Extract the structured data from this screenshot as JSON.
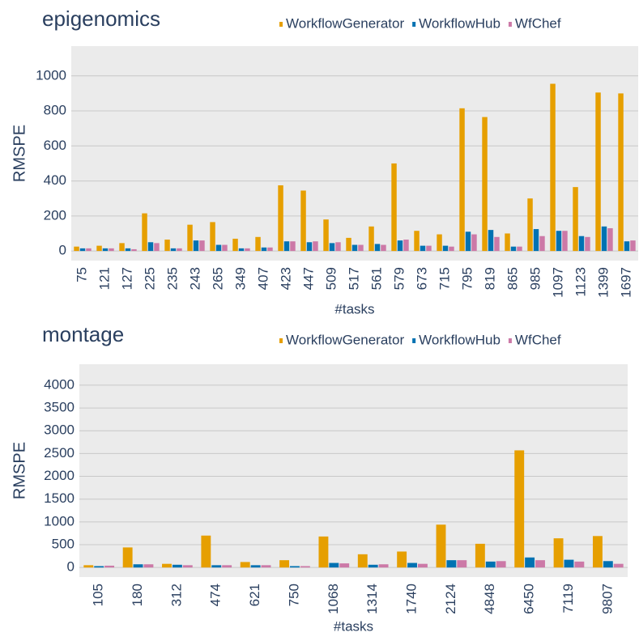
{
  "chart_data": [
    {
      "type": "bar",
      "title": "epigenomics",
      "xlabel": "#tasks",
      "ylabel": "RMSPE",
      "categories": [
        "75",
        "121",
        "127",
        "225",
        "235",
        "243",
        "265",
        "349",
        "407",
        "423",
        "447",
        "509",
        "517",
        "561",
        "579",
        "673",
        "715",
        "795",
        "819",
        "865",
        "985",
        "1097",
        "1123",
        "1399",
        "1697"
      ],
      "series": [
        {
          "name": "WorkflowGenerator",
          "color": "#e69f00",
          "values": [
            25,
            30,
            45,
            215,
            65,
            150,
            165,
            70,
            80,
            375,
            345,
            180,
            75,
            140,
            500,
            115,
            95,
            815,
            765,
            100,
            300,
            955,
            365,
            905,
            900
          ]
        },
        {
          "name": "WorkflowHub",
          "color": "#0072b2",
          "values": [
            15,
            15,
            15,
            50,
            15,
            60,
            35,
            15,
            20,
            55,
            50,
            45,
            35,
            40,
            60,
            30,
            30,
            110,
            120,
            25,
            125,
            115,
            85,
            140,
            55
          ]
        },
        {
          "name": "WfChef",
          "color": "#cc79a7",
          "values": [
            15,
            15,
            10,
            45,
            15,
            60,
            35,
            15,
            20,
            55,
            55,
            50,
            35,
            35,
            65,
            30,
            25,
            95,
            80,
            25,
            85,
            115,
            80,
            130,
            60
          ]
        }
      ],
      "ylim": [
        -55,
        1170
      ],
      "yticks": [
        0,
        200,
        400,
        600,
        800,
        1000
      ],
      "grid": true
    },
    {
      "type": "bar",
      "title": "montage",
      "xlabel": "#tasks",
      "ylabel": "RMSPE",
      "categories": [
        "105",
        "180",
        "312",
        "474",
        "621",
        "750",
        "1068",
        "1314",
        "1740",
        "2124",
        "4848",
        "6450",
        "7119",
        "9807"
      ],
      "series": [
        {
          "name": "WorkflowGenerator",
          "color": "#e69f00",
          "values": [
            50,
            440,
            80,
            700,
            120,
            160,
            680,
            290,
            350,
            940,
            520,
            2570,
            640,
            690
          ]
        },
        {
          "name": "WorkflowHub",
          "color": "#0072b2",
          "values": [
            30,
            70,
            60,
            50,
            50,
            30,
            100,
            60,
            100,
            160,
            130,
            220,
            170,
            140
          ]
        },
        {
          "name": "WfChef",
          "color": "#cc79a7",
          "values": [
            40,
            70,
            50,
            50,
            50,
            30,
            90,
            70,
            80,
            160,
            140,
            160,
            130,
            80
          ]
        }
      ],
      "ylim": [
        -210,
        4460
      ],
      "yticks": [
        0,
        500,
        1000,
        1500,
        2000,
        2500,
        3000,
        3500,
        4000
      ],
      "grid": true
    }
  ]
}
